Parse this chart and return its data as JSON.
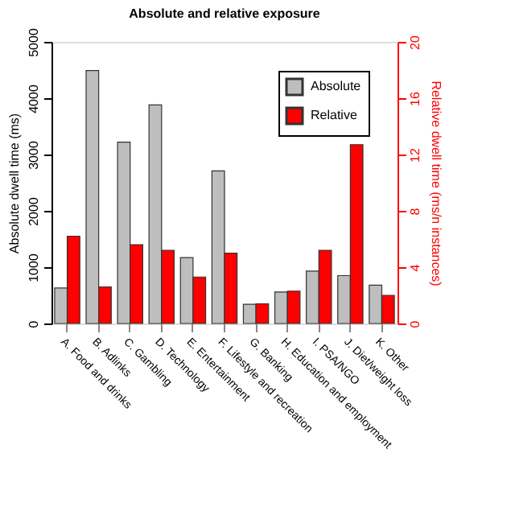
{
  "chart_data": {
    "type": "bar",
    "title": "Absolute and relative exposure",
    "ylabel": "Absolute dwell time (ms)",
    "y2label": "Relative dwell time (ms/n instances)",
    "categories": [
      "A. Food and drinks",
      "B. Adlinks",
      "C. Gambling",
      "D. Technology",
      "E. Entertainment",
      "F. Lifestyle and recreation",
      "G. Banking",
      "H. Education and employment",
      "I. PSA/NGO",
      "J. Diet/weight loss",
      "K. Other"
    ],
    "series": [
      {
        "name": "Absolute",
        "color": "#bebebe",
        "values": [
          630,
          4490,
          3220,
          3880,
          1170,
          2710,
          340,
          560,
          930,
          850,
          680
        ]
      },
      {
        "name": "Relative",
        "color": "#ff0000",
        "axis": "y2",
        "values": [
          6.2,
          2.6,
          5.6,
          5.2,
          3.3,
          5.0,
          1.4,
          2.3,
          5.2,
          12.7,
          2.0
        ]
      }
    ],
    "ylim": [
      0,
      5000
    ],
    "yticks": [
      0,
      1000,
      2000,
      3000,
      4000,
      5000
    ],
    "y2lim": [
      0,
      20
    ],
    "y2ticks": [
      0,
      4,
      8,
      12,
      16,
      20
    ],
    "grid": false,
    "legend": "top right"
  }
}
